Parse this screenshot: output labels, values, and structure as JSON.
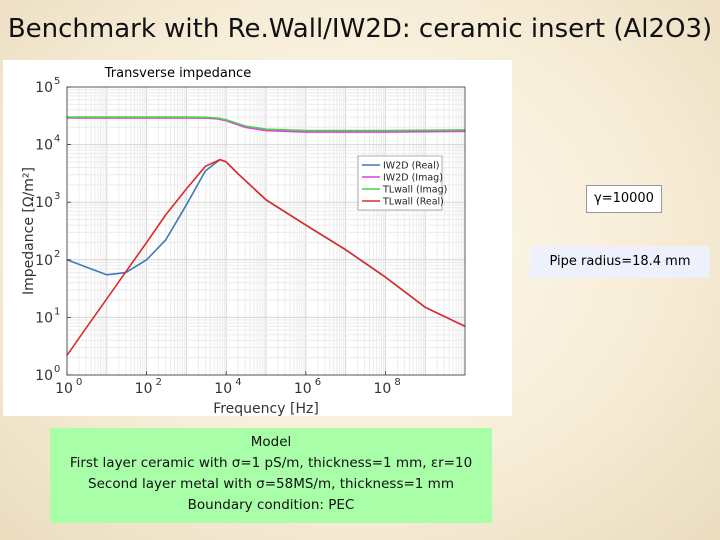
{
  "slide": {
    "title": "Benchmark with Re.Wall/IW2D: ceramic insert (Al2O3)"
  },
  "annotations": {
    "gamma": "γ=10000",
    "pipe_radius": "Pipe radius=18.4 mm"
  },
  "model": {
    "heading": "Model",
    "line1": "First layer ceramic with σ=1 pS/m, thickness=1 mm, εr=10",
    "line2": "Second layer metal with σ=58MS/m, thickness=1 mm",
    "line3": "Boundary condition: PEC"
  },
  "chart_data": {
    "type": "line",
    "title": "Transverse impedance",
    "xlabel": "Frequency [Hz]",
    "ylabel": "Impedance [Ω/m²]",
    "x_scale": "log",
    "y_scale": "log",
    "xlim": [
      1,
      10000000000
    ],
    "ylim": [
      1,
      100000
    ],
    "x_ticks": [
      {
        "value": 1,
        "label": "10",
        "exp": "0"
      },
      {
        "value": 100,
        "label": "10",
        "exp": "2"
      },
      {
        "value": 10000,
        "label": "10",
        "exp": "4"
      },
      {
        "value": 1000000,
        "label": "10",
        "exp": "6"
      },
      {
        "value": 100000000,
        "label": "10",
        "exp": "8"
      }
    ],
    "y_ticks": [
      {
        "value": 1,
        "label": "10",
        "exp": "0"
      },
      {
        "value": 10,
        "label": "10",
        "exp": "1"
      },
      {
        "value": 100,
        "label": "10",
        "exp": "2"
      },
      {
        "value": 1000,
        "label": "10",
        "exp": "3"
      },
      {
        "value": 10000,
        "label": "10",
        "exp": "4"
      },
      {
        "value": 100000,
        "label": "10",
        "exp": "5"
      }
    ],
    "grid": true,
    "legend_position": "right",
    "series": [
      {
        "name": "IW2D (Real)",
        "color": "#3f7ab8",
        "x": [
          1,
          3,
          10,
          30,
          100,
          300,
          1000,
          3000,
          7000,
          10000,
          20000,
          100000,
          1000000,
          10000000,
          100000000,
          1000000000,
          10000000000
        ],
        "y": [
          100,
          75,
          55,
          60,
          100,
          220,
          900,
          3500,
          5500,
          5000,
          3100,
          1100,
          400,
          150,
          50,
          15,
          7
        ]
      },
      {
        "name": "IW2D (Imag)",
        "color": "#e23be0",
        "x": [
          1,
          1000,
          3000,
          6000,
          10000,
          30000,
          100000,
          1000000,
          100000000,
          10000000000
        ],
        "y": [
          29000,
          29000,
          28800,
          28000,
          26000,
          20000,
          17500,
          16500,
          16500,
          17000
        ]
      },
      {
        "name": "TLwall (Imag)",
        "color": "#4bd04b",
        "x": [
          1,
          1000,
          3000,
          6000,
          10000,
          30000,
          100000,
          1000000,
          100000000,
          10000000000
        ],
        "y": [
          30000,
          30000,
          29800,
          29000,
          27000,
          21000,
          18500,
          17500,
          17500,
          18000
        ]
      },
      {
        "name": "TLwall (Real)",
        "color": "#e02a2a",
        "x": [
          1,
          3,
          10,
          30,
          100,
          300,
          1000,
          3000,
          7000,
          10000,
          20000,
          100000,
          1000000,
          10000000,
          100000000,
          1000000000,
          10000000000
        ],
        "y": [
          2.2,
          6.5,
          21,
          62,
          200,
          600,
          1700,
          4200,
          5500,
          5000,
          3100,
          1100,
          400,
          150,
          50,
          15,
          7
        ]
      }
    ]
  }
}
